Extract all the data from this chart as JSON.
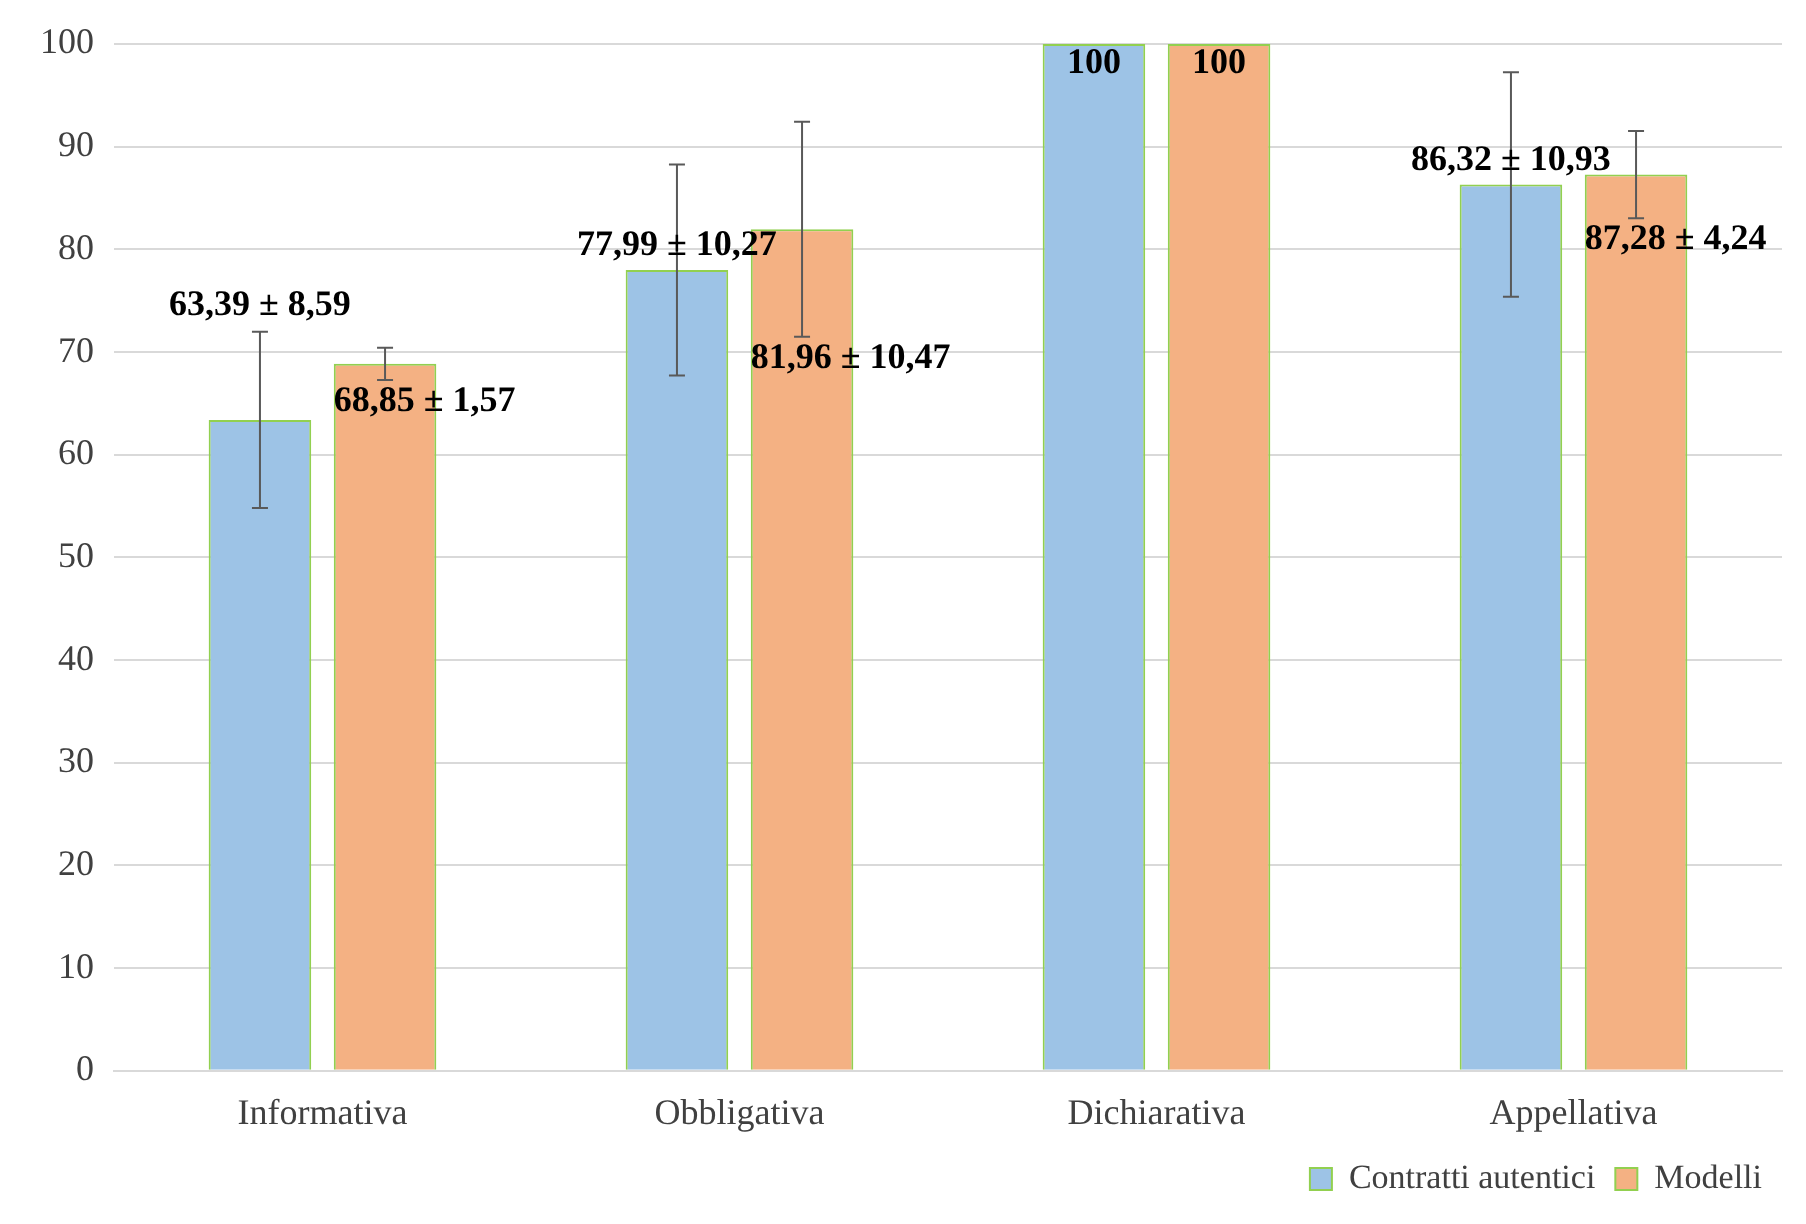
{
  "chart_data": {
    "type": "bar",
    "categories": [
      "Informativa",
      "Obbligativa",
      "Dichiarativa",
      "Appellativa"
    ],
    "series": [
      {
        "name": "Contratti autentici",
        "color": "#9dc3e6",
        "values": [
          63.39,
          77.99,
          100,
          86.32
        ],
        "errors": [
          8.59,
          10.27,
          null,
          10.93
        ],
        "value_labels": [
          "63,39 ± 8,59",
          "77,99 ± 10,27",
          "100",
          "86,32 ± 10,93"
        ]
      },
      {
        "name": "Modelli",
        "color": "#f4b183",
        "values": [
          68.85,
          81.96,
          100,
          87.28
        ],
        "errors": [
          1.57,
          10.47,
          null,
          4.24
        ],
        "value_labels": [
          "68,85 ± 1,57",
          "81,96 ± 10,47",
          "100",
          "87,28 ± 4,24"
        ]
      }
    ],
    "ylim": [
      0,
      100
    ],
    "yticks": [
      0,
      10,
      20,
      30,
      40,
      50,
      60,
      70,
      80,
      90,
      100
    ],
    "grid": "y",
    "legend": "bottom right"
  }
}
